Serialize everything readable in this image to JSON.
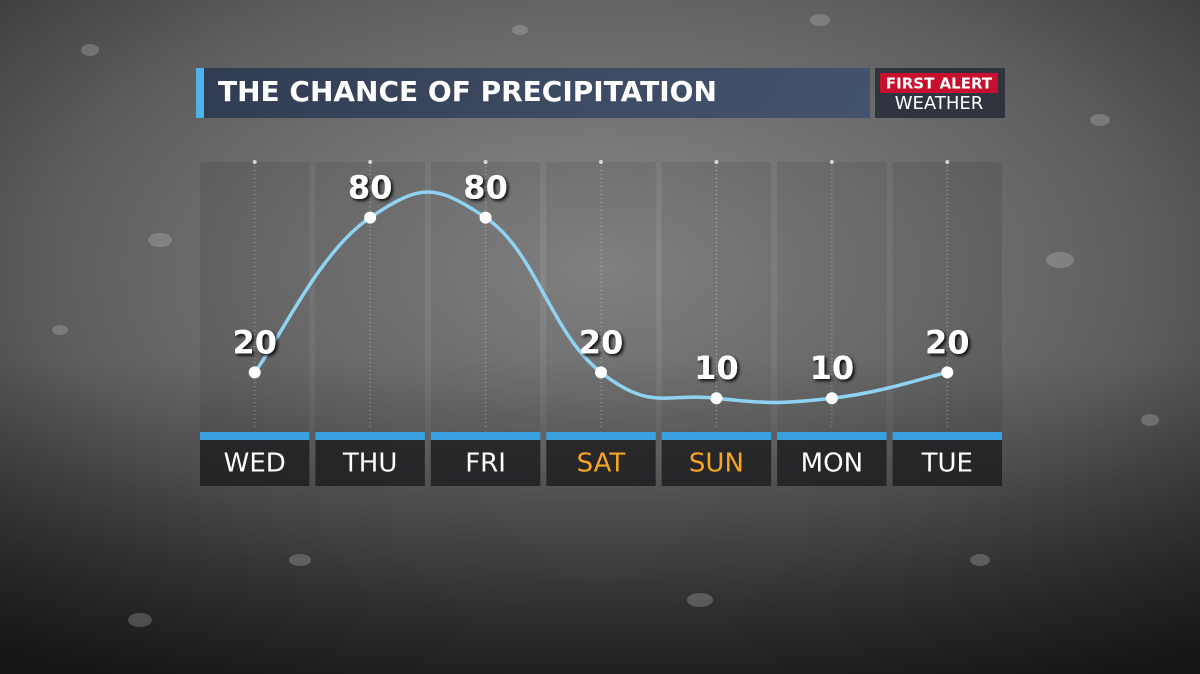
{
  "chart_data": {
    "type": "line",
    "title": "THE CHANCE OF PRECIPITATION",
    "logo": {
      "top": "FIRST ALERT",
      "bottom": "WEATHER"
    },
    "categories": [
      "WED",
      "THU",
      "FRI",
      "SAT",
      "SUN",
      "MON",
      "TUE"
    ],
    "category_colors": [
      "#ffffff",
      "#ffffff",
      "#ffffff",
      "#f5a623",
      "#f5a623",
      "#ffffff",
      "#ffffff"
    ],
    "values": [
      20,
      80,
      80,
      20,
      10,
      10,
      20
    ],
    "color": "#8fd3f4",
    "ylim": [
      0,
      100
    ]
  }
}
